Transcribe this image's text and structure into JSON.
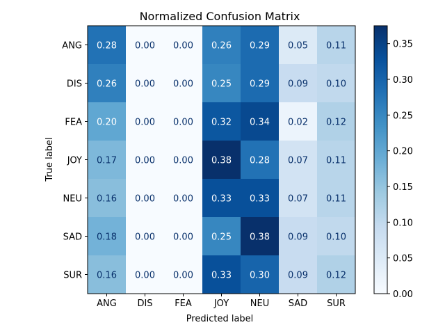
{
  "chart_data": {
    "type": "heatmap",
    "title": "Normalized Confusion Matrix",
    "xlabel": "Predicted label",
    "ylabel": "True label",
    "x_categories": [
      "ANG",
      "DIS",
      "FEA",
      "JOY",
      "NEU",
      "SAD",
      "SUR"
    ],
    "y_categories": [
      "ANG",
      "DIS",
      "FEA",
      "JOY",
      "NEU",
      "SAD",
      "SUR"
    ],
    "values": [
      [
        0.28,
        0.0,
        0.0,
        0.26,
        0.29,
        0.05,
        0.11
      ],
      [
        0.26,
        0.0,
        0.0,
        0.25,
        0.29,
        0.09,
        0.1
      ],
      [
        0.2,
        0.0,
        0.0,
        0.32,
        0.34,
        0.02,
        0.12
      ],
      [
        0.17,
        0.0,
        0.0,
        0.38,
        0.28,
        0.07,
        0.11
      ],
      [
        0.16,
        0.0,
        0.0,
        0.33,
        0.33,
        0.07,
        0.11
      ],
      [
        0.18,
        0.0,
        0.0,
        0.25,
        0.38,
        0.09,
        0.1
      ],
      [
        0.16,
        0.0,
        0.0,
        0.33,
        0.3,
        0.09,
        0.12
      ]
    ],
    "cell_labels": [
      [
        "0.28",
        "0.00",
        "0.00",
        "0.26",
        "0.29",
        "0.05",
        "0.11"
      ],
      [
        "0.26",
        "0.00",
        "0.00",
        "0.25",
        "0.29",
        "0.09",
        "0.10"
      ],
      [
        "0.20",
        "0.00",
        "0.00",
        "0.32",
        "0.34",
        "0.02",
        "0.12"
      ],
      [
        "0.17",
        "0.00",
        "0.00",
        "0.38",
        "0.28",
        "0.07",
        "0.11"
      ],
      [
        "0.16",
        "0.00",
        "0.00",
        "0.33",
        "0.33",
        "0.07",
        "0.11"
      ],
      [
        "0.18",
        "0.00",
        "0.00",
        "0.25",
        "0.38",
        "0.09",
        "0.10"
      ],
      [
        "0.16",
        "0.00",
        "0.00",
        "0.33",
        "0.30",
        "0.09",
        "0.12"
      ]
    ],
    "colormap": "Blues",
    "color_range": [
      0.0,
      0.375
    ],
    "colorbar_ticks": [
      0.0,
      0.05,
      0.1,
      0.15,
      0.2,
      0.25,
      0.3,
      0.35
    ],
    "colorbar_tick_labels": [
      "0.00",
      "0.05",
      "0.10",
      "0.15",
      "0.20",
      "0.25",
      "0.30",
      "0.35"
    ],
    "grid": false,
    "colorbar_position": "right"
  }
}
